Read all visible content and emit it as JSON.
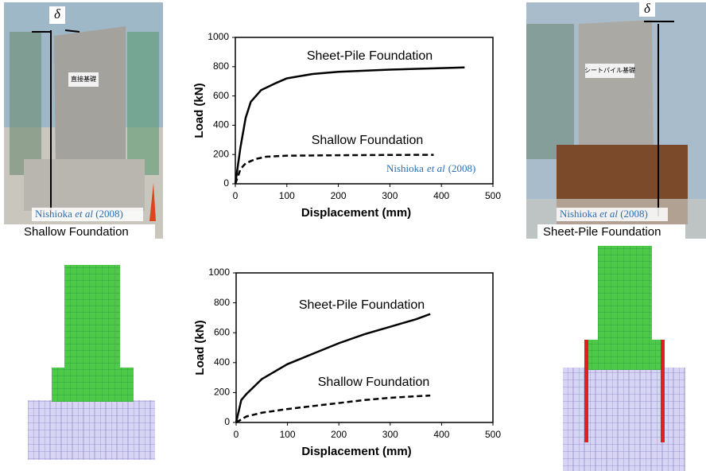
{
  "chart_data": [
    {
      "type": "line",
      "xlabel": "Displacement (mm)",
      "ylabel": "Load (kN)",
      "xlim": [
        0,
        500
      ],
      "xticks": [
        0,
        100,
        200,
        300,
        400,
        500
      ],
      "ylim": [
        0,
        1000
      ],
      "yticks": [
        0,
        200,
        400,
        600,
        800,
        1000
      ],
      "annotation": {
        "author": "Nishioka",
        "etal": "et al",
        "year": "(2008)"
      },
      "series": [
        {
          "name": "Sheet-Pile Foundation",
          "color": "#000000",
          "style": "solid",
          "x": [
            0,
            10,
            20,
            30,
            50,
            80,
            100,
            150,
            200,
            300,
            400,
            445
          ],
          "values": [
            0,
            250,
            450,
            560,
            640,
            690,
            720,
            750,
            765,
            780,
            790,
            795
          ]
        },
        {
          "name": "Shallow Foundation",
          "color": "#000000",
          "style": "dashed",
          "x": [
            0,
            10,
            20,
            40,
            60,
            100,
            200,
            300,
            385
          ],
          "values": [
            0,
            100,
            140,
            170,
            185,
            192,
            195,
            197,
            198
          ]
        }
      ]
    },
    {
      "type": "line",
      "xlabel": "Displacement (mm)",
      "ylabel": "Load (kN)",
      "xlim": [
        0,
        500
      ],
      "xticks": [
        0,
        100,
        200,
        300,
        400,
        500
      ],
      "ylim": [
        0,
        1000
      ],
      "yticks": [
        0,
        200,
        400,
        600,
        800,
        1000
      ],
      "series": [
        {
          "name": "Sheet-Pile Foundation",
          "color": "#000000",
          "style": "solid",
          "x": [
            0,
            10,
            20,
            50,
            100,
            150,
            200,
            250,
            300,
            350,
            378
          ],
          "values": [
            0,
            150,
            190,
            290,
            390,
            460,
            530,
            590,
            640,
            690,
            725
          ]
        },
        {
          "name": "Shallow Foundation",
          "color": "#000000",
          "style": "dashed",
          "x": [
            0,
            10,
            20,
            50,
            100,
            150,
            200,
            250,
            300,
            350,
            378
          ],
          "values": [
            0,
            20,
            40,
            65,
            90,
            110,
            130,
            150,
            165,
            175,
            180
          ]
        }
      ]
    }
  ],
  "photos": [
    {
      "caption": "Shallow Foundation",
      "delta": "δ",
      "sign": "直接基礎",
      "credit": {
        "author": "Nishioka",
        "etal": "et al",
        "year": "(2008)"
      }
    },
    {
      "caption": "Sheet-Pile Foundation",
      "delta": "δ",
      "sign": "シートパイル基礎",
      "credit": {
        "author": "Nishioka",
        "etal": "et al",
        "year": "(2008)"
      }
    }
  ]
}
